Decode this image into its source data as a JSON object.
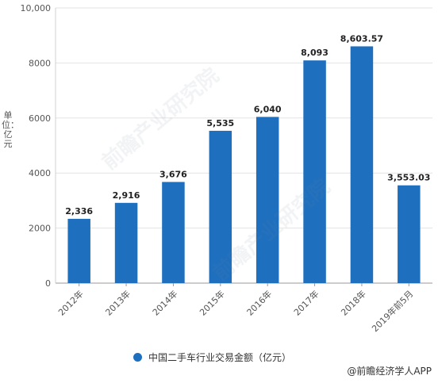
{
  "chart_data": {
    "type": "bar",
    "categories": [
      "2012年",
      "2013年",
      "2014年",
      "2015年",
      "2016年",
      "2017年",
      "2018年",
      "2019年前5月"
    ],
    "values": [
      2336,
      2916,
      3676,
      5535,
      6040,
      8093,
      8603.57,
      3553.03
    ],
    "value_labels": [
      "2,336",
      "2,916",
      "3,676",
      "5,535",
      "6,040",
      "8,093",
      "8,603.57",
      "3,553.03"
    ],
    "ylabel": "单位：亿元",
    "ylim": [
      0,
      10000
    ],
    "y_ticks": [
      0,
      2000,
      4000,
      6000,
      8000,
      10000
    ],
    "y_tick_labels": [
      "0",
      "2000",
      "4000",
      "6000",
      "8000",
      "10,000"
    ],
    "legend": "中国二手车行业交易金额（亿元）",
    "legend_position": "bottom",
    "grid": true,
    "bar_color": "#1f6fbf"
  },
  "source": "@前瞻经济学人APP",
  "watermark": "前瞻产业研究院"
}
